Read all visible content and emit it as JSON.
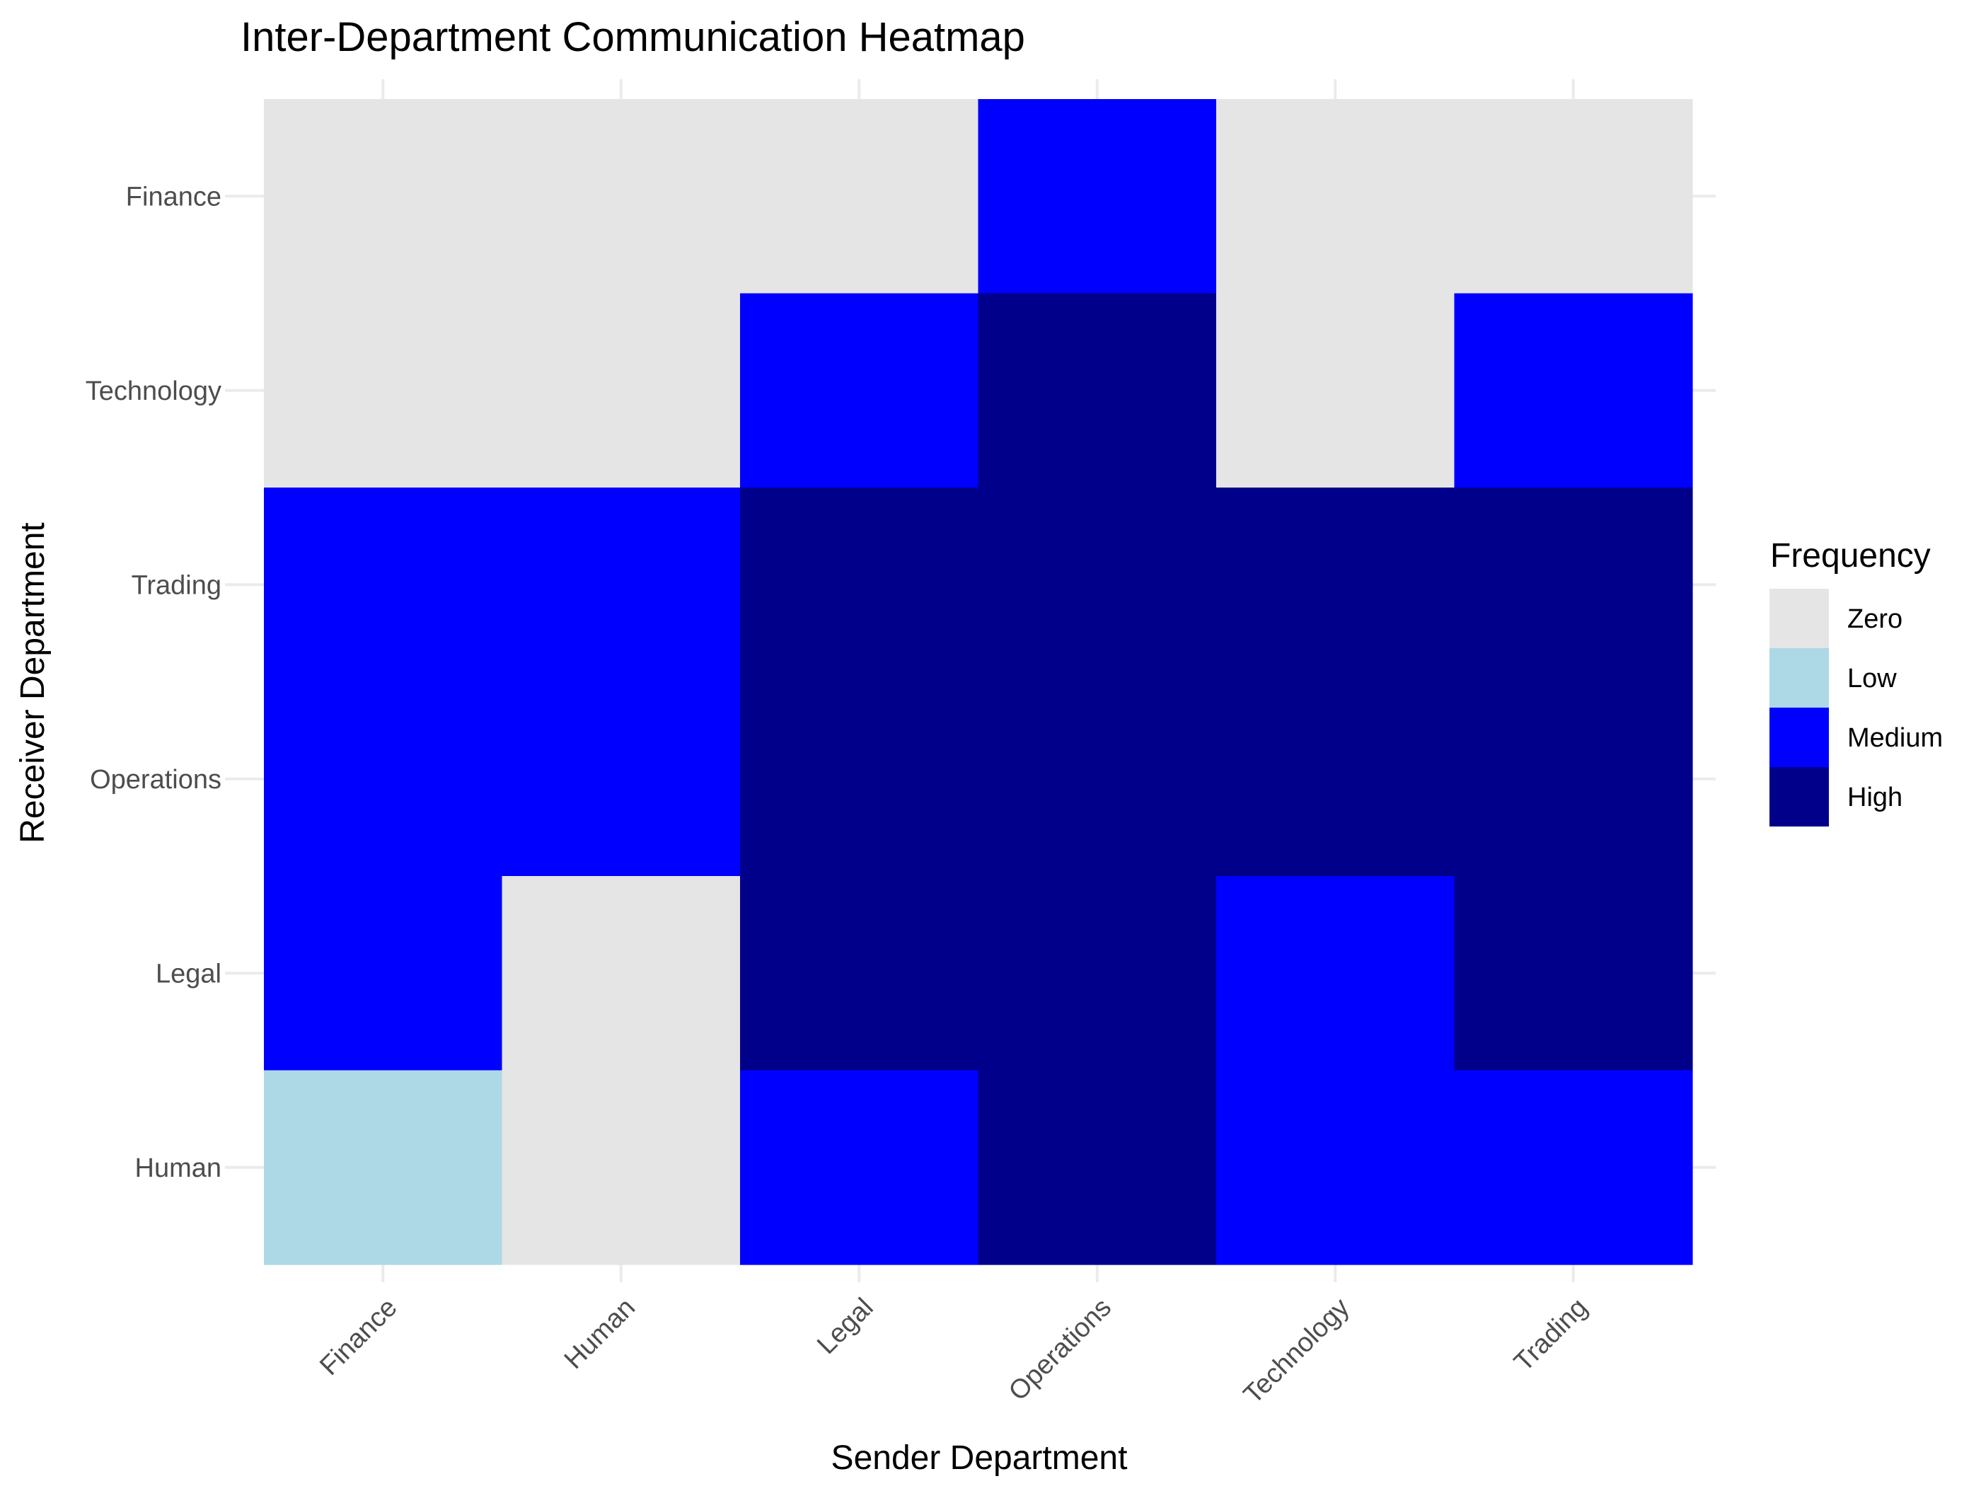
{
  "chart_data": {
    "type": "heatmap",
    "title": "Inter-Department Communication Heatmap",
    "xlabel": "Sender Department",
    "ylabel": "Receiver Department",
    "x_categories": [
      "Finance",
      "Human",
      "Legal",
      "Operations",
      "Technology",
      "Trading"
    ],
    "y_categories": [
      "Finance",
      "Technology",
      "Trading",
      "Operations",
      "Legal",
      "Human"
    ],
    "values": [
      [
        "Zero",
        "Zero",
        "Zero",
        "Medium",
        "Zero",
        "Zero"
      ],
      [
        "Zero",
        "Zero",
        "Medium",
        "High",
        "Zero",
        "Medium"
      ],
      [
        "Medium",
        "Medium",
        "High",
        "High",
        "High",
        "High"
      ],
      [
        "Medium",
        "Medium",
        "High",
        "High",
        "High",
        "High"
      ],
      [
        "Medium",
        "Zero",
        "High",
        "High",
        "Medium",
        "High"
      ],
      [
        "Low",
        "Zero",
        "Medium",
        "High",
        "Medium",
        "Medium"
      ]
    ],
    "legend": {
      "title": "Frequency",
      "placement": "right",
      "levels": [
        {
          "label": "Zero",
          "color": "#e5e5e5"
        },
        {
          "label": "Low",
          "color": "#add8e6"
        },
        {
          "label": "Medium",
          "color": "#0000ff"
        },
        {
          "label": "High",
          "color": "#00008b"
        }
      ]
    },
    "grid": true
  }
}
